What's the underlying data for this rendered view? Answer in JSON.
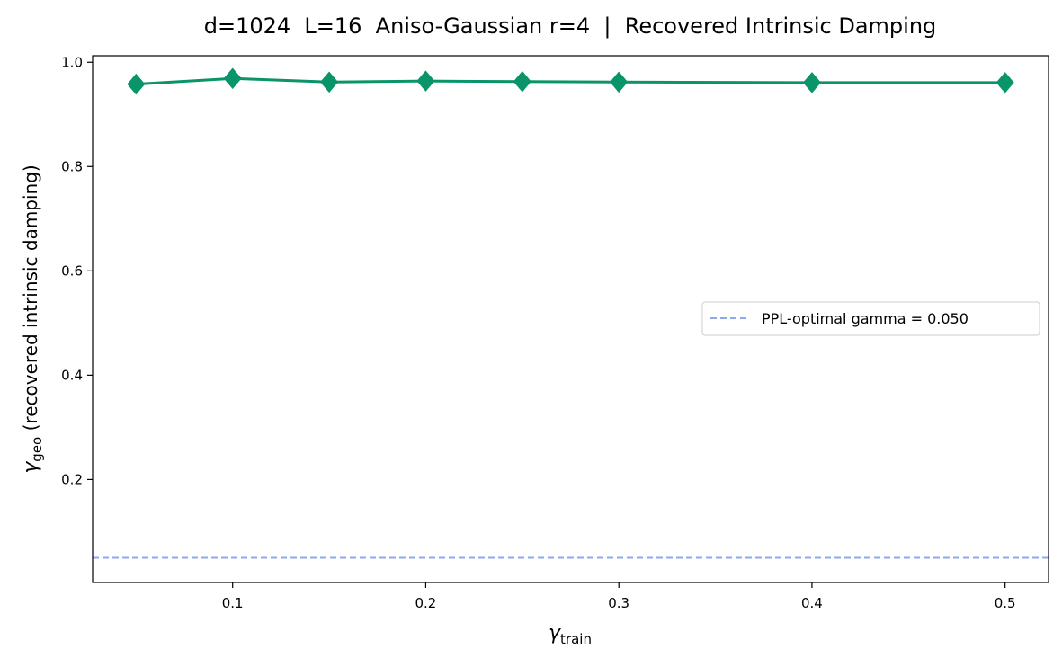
{
  "chart_data": {
    "type": "line",
    "title": "d=1024  L=16  Aniso-Gaussian r=4  |  Recovered Intrinsic Damping",
    "xlabel": {
      "symbol": "γ",
      "subscript": "train"
    },
    "ylabel": {
      "symbol": "γ",
      "subscript": "geo",
      "suffix": " (recovered intrinsic damping)"
    },
    "xlim": [
      0.0275,
      0.5225
    ],
    "ylim": [
      0.0025,
      1.0125
    ],
    "x_ticks": [
      0.1,
      0.2,
      0.3,
      0.4,
      0.5
    ],
    "x_tick_labels": [
      "0.1",
      "0.2",
      "0.3",
      "0.4",
      "0.5"
    ],
    "y_ticks": [
      0.2,
      0.4,
      0.6,
      0.8,
      1.0
    ],
    "y_tick_labels": [
      "0.2",
      "0.4",
      "0.6",
      "0.8",
      "1.0"
    ],
    "grid": false,
    "series": [
      {
        "marker": "diamond",
        "color": "#0a9469",
        "x": [
          0.05,
          0.1,
          0.15,
          0.2,
          0.25,
          0.3,
          0.4,
          0.5
        ],
        "y": [
          0.958,
          0.969,
          0.962,
          0.964,
          0.963,
          0.962,
          0.961,
          0.961
        ]
      }
    ],
    "reference_lines": [
      {
        "orientation": "horizontal",
        "y": 0.05,
        "style": "dashed",
        "color": "#8ea9f0",
        "label": "PPL-optimal gamma = 0.050"
      }
    ],
    "legend": {
      "placement": "center-right"
    }
  }
}
